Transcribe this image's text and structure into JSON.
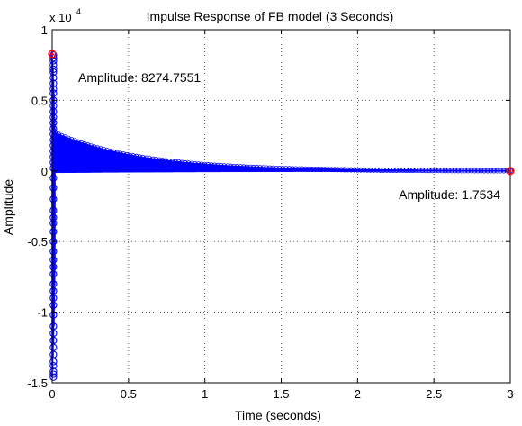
{
  "chart_data": {
    "type": "stem",
    "title": "Impulse Response of FB model (3 Seconds)",
    "xlabel": "Time (seconds)",
    "ylabel": "Amplitude",
    "y_multiplier_label": "x 10",
    "y_multiplier_exponent": "4",
    "xlim": [
      0,
      3
    ],
    "ylim": [
      -1.5,
      1
    ],
    "x_ticks": [
      0,
      0.5,
      1,
      1.5,
      2,
      2.5,
      3
    ],
    "x_tick_labels": [
      "0",
      "0.5",
      "1",
      "1.5",
      "2",
      "2.5",
      "3"
    ],
    "y_ticks": [
      1,
      0.5,
      0,
      -0.5,
      -1,
      -1.5
    ],
    "y_tick_labels": [
      "1",
      "0.5",
      "0",
      "-0.5",
      "-1",
      "-1.5"
    ],
    "grid": true,
    "series_color": "#0000ff",
    "highlight_color": "#ff0000",
    "envelope": {
      "start_x": 0.02,
      "end_x": 3,
      "initial_positive": 0.27,
      "decay_time": 0.55,
      "negative_floor": -0.01
    },
    "near_zero_stems": [
      {
        "x": 0.0,
        "y": 0.8275
      },
      {
        "x": 0.0,
        "y": -1.45
      },
      {
        "x": 0.003,
        "y": 0.78
      },
      {
        "x": 0.003,
        "y": -1.4
      },
      {
        "x": 0.006,
        "y": 0.72
      },
      {
        "x": 0.006,
        "y": -1.32
      },
      {
        "x": 0.009,
        "y": 0.64
      },
      {
        "x": 0.009,
        "y": -1.22
      },
      {
        "x": 0.012,
        "y": 0.55
      },
      {
        "x": 0.012,
        "y": -1.1
      },
      {
        "x": 0.014,
        "y": 0.45
      },
      {
        "x": 0.014,
        "y": -0.98
      },
      {
        "x": 0.016,
        "y": 0.38
      },
      {
        "x": 0.016,
        "y": -0.85
      },
      {
        "x": 0.018,
        "y": 0.3
      },
      {
        "x": 0.018,
        "y": -0.7
      }
    ],
    "marker_x": 0.008,
    "marker_y_values": [
      0.82,
      0.8,
      0.78,
      0.75,
      0.72,
      0.7,
      0.66,
      0.62,
      0.58,
      0.55,
      0.5,
      0.46,
      0.42,
      0.38,
      0.34,
      0.3,
      0.26,
      0.22,
      0.18,
      0.14,
      0.1,
      0.06,
      0.02,
      -0.05,
      -0.12,
      -0.2,
      -0.28,
      -0.33,
      -0.37,
      -0.43,
      -0.5,
      -0.57,
      -0.63,
      -0.68,
      -0.73,
      -0.8,
      -0.85,
      -0.9,
      -0.95,
      -1.02,
      -1.1,
      -1.15,
      -1.2,
      -1.25,
      -1.3,
      -1.35,
      -1.38,
      -1.42,
      -1.44,
      -1.46
    ],
    "datatips": [
      {
        "x": 0.0,
        "y": 8274.7551,
        "label": "Amplitude: 8274.7551"
      },
      {
        "x": 3.0,
        "y": 1.7534,
        "label": "Amplitude: 1.7534"
      }
    ]
  }
}
